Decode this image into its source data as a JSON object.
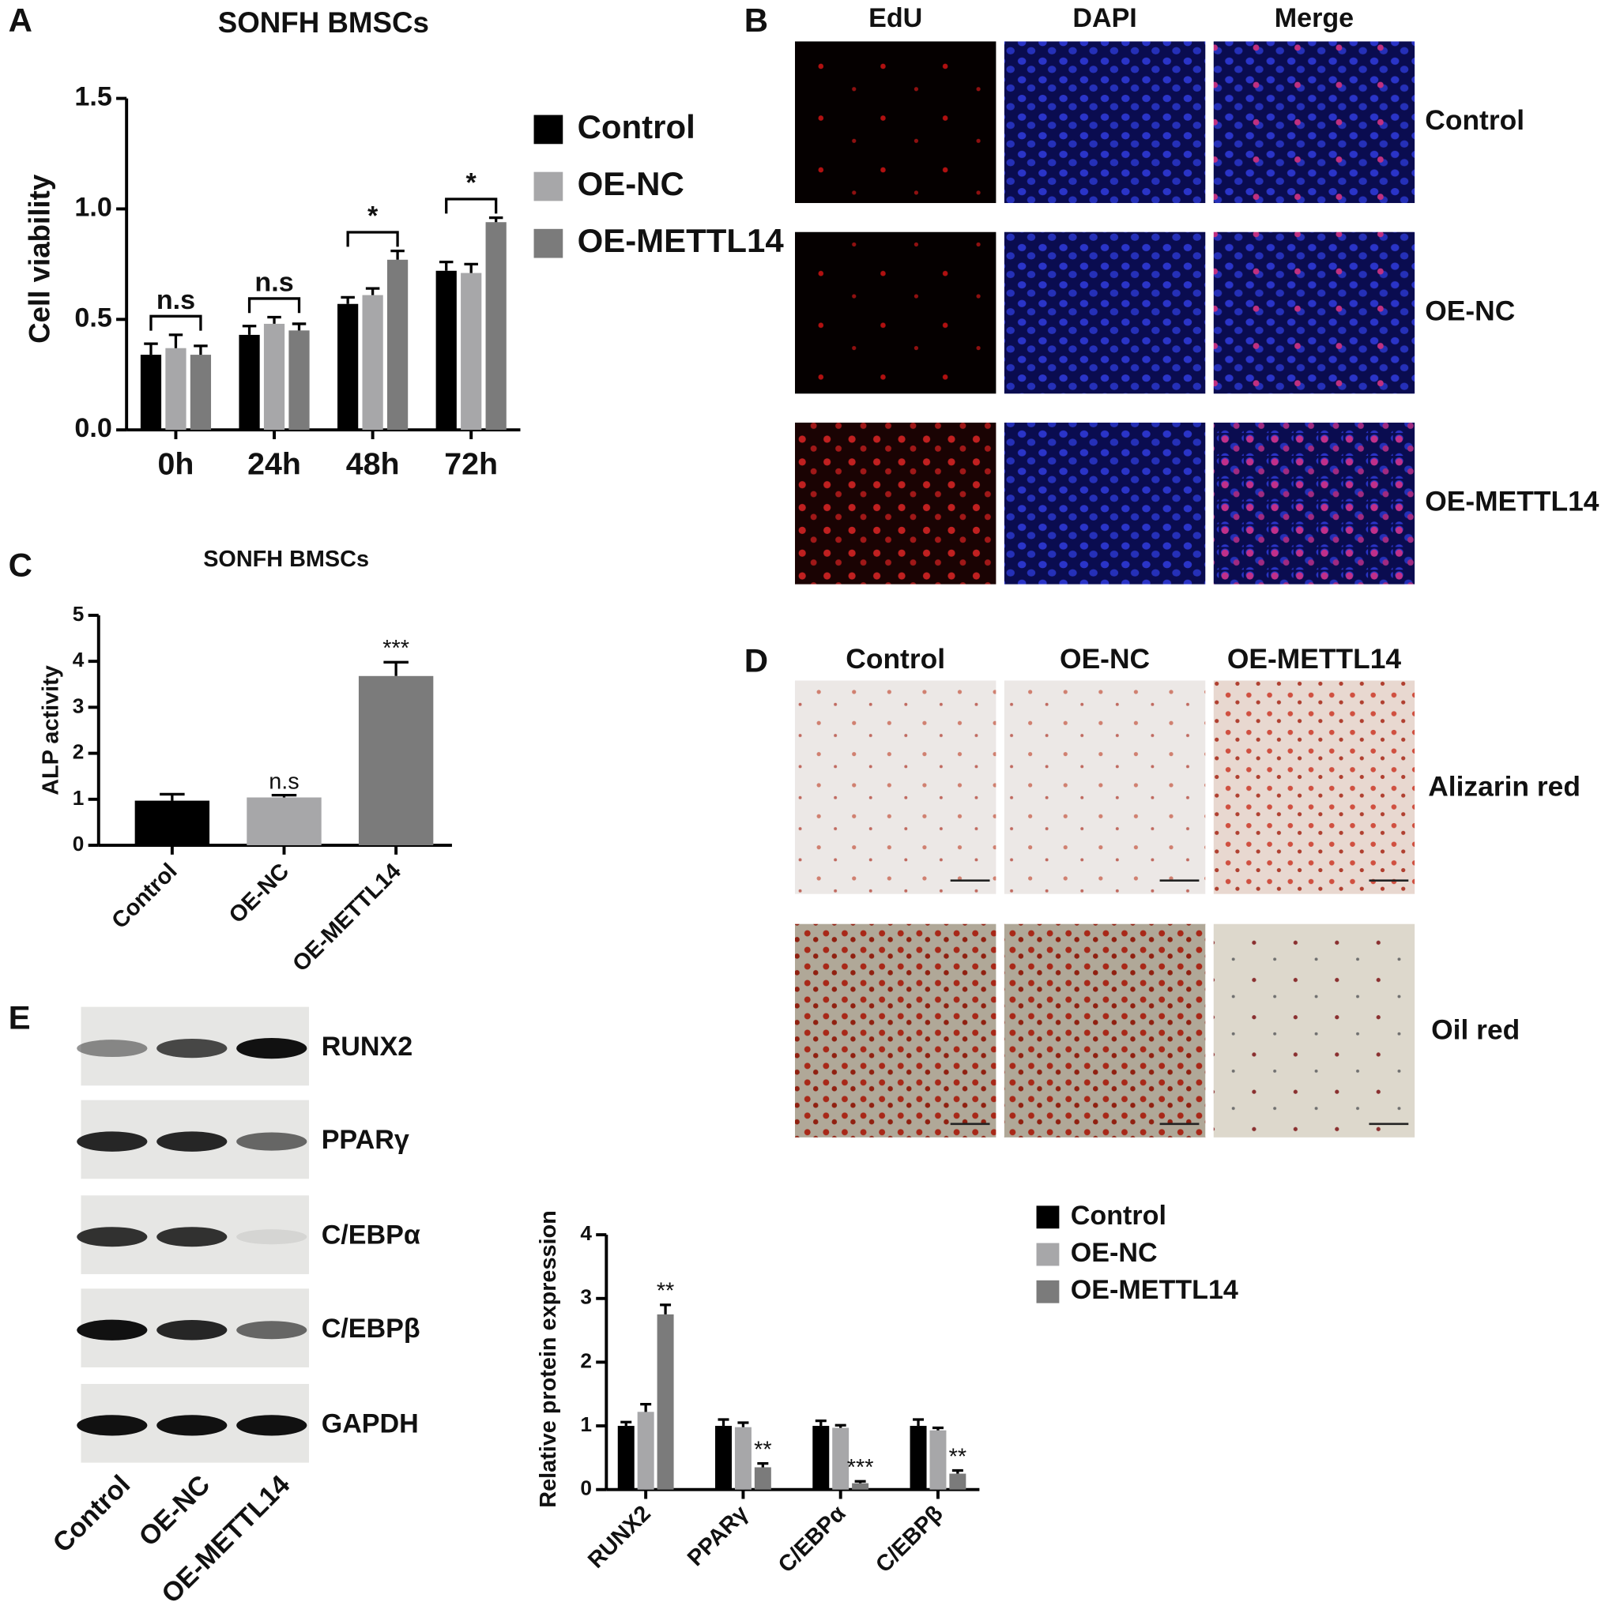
{
  "panel_labels": [
    "A",
    "B",
    "C",
    "D",
    "E"
  ],
  "chart_data": [
    {
      "type": "bar",
      "title": "SONFH BMSCs",
      "y_label": "Cell viability",
      "categories": [
        "0h",
        "24h",
        "48h",
        "72h"
      ],
      "series": [
        {
          "name": "Control",
          "color": "#000000",
          "values": [
            0.34,
            0.43,
            0.57,
            0.72
          ],
          "errors": [
            0.05,
            0.04,
            0.03,
            0.04
          ]
        },
        {
          "name": "OE-NC",
          "color": "#a7a7a9",
          "values": [
            0.37,
            0.48,
            0.61,
            0.71
          ],
          "errors": [
            0.06,
            0.03,
            0.03,
            0.04
          ]
        },
        {
          "name": "OE-METTL14",
          "color": "#7b7b7b",
          "values": [
            0.34,
            0.45,
            0.77,
            0.94
          ],
          "errors": [
            0.04,
            0.03,
            0.04,
            0.02
          ]
        }
      ],
      "annotations": [
        "n.s",
        "n.s",
        "*",
        "*"
      ],
      "ylim": [
        0,
        1.5
      ],
      "yticks": [
        {
          "value": 0,
          "label": "0.0"
        },
        0.5,
        {
          "value": 1,
          "label": "1.0"
        },
        1.5
      ]
    },
    {
      "type": "bar",
      "title": "SONFH BMSCs",
      "y_label": "ALP activity",
      "categories": [
        "Control",
        "OE-NC",
        "OE-METTL14"
      ],
      "values": [
        0.97,
        1.04,
        3.68
      ],
      "errors": [
        0.14,
        0.05,
        0.3
      ],
      "colors": [
        "#000000",
        "#a7a7a9",
        "#7b7b7b"
      ],
      "annotations": [
        null,
        "n.s",
        "***"
      ],
      "ylim": [
        0,
        5
      ],
      "yticks": [
        0,
        1,
        2,
        3,
        4,
        5
      ]
    },
    {
      "type": "bar",
      "y_label": "Relative protein expression",
      "categories": [
        "RUNX2",
        "PPARγ",
        "C/EBPα",
        "C/EBPβ"
      ],
      "series": [
        {
          "name": "Control",
          "color": "#000000",
          "values": [
            1.0,
            1.0,
            1.0,
            1.0
          ],
          "errors": [
            0.06,
            0.1,
            0.08,
            0.1
          ]
        },
        {
          "name": "OE-NC",
          "color": "#a7a7a9",
          "values": [
            1.22,
            0.98,
            0.97,
            0.93
          ],
          "errors": [
            0.12,
            0.07,
            0.04,
            0.04
          ]
        },
        {
          "name": "OE-METTL14",
          "color": "#7b7b7b",
          "values": [
            2.75,
            0.35,
            0.1,
            0.25
          ],
          "errors": [
            0.15,
            0.06,
            0.03,
            0.05
          ],
          "annotations": [
            "**",
            "**",
            "***",
            "**"
          ]
        }
      ],
      "ylim": [
        0,
        4
      ],
      "yticks": [
        0,
        1,
        2,
        3,
        4
      ]
    }
  ],
  "edu_panel": {
    "columns": [
      "EdU",
      "DAPI",
      "Merge"
    ],
    "rows": [
      "Control",
      "OE-NC",
      "OE-METTL14"
    ]
  },
  "staining_panel": {
    "columns": [
      "Control",
      "OE-NC",
      "OE-METTL14"
    ],
    "rows": [
      "Alizarin red",
      "Oil red"
    ]
  },
  "blot_panel": {
    "proteins": [
      "RUNX2",
      "PPARγ",
      "C/EBPα",
      "C/EBPβ",
      "GAPDH"
    ],
    "lanes": [
      "Control",
      "OE-NC",
      "OE-METTL14"
    ]
  }
}
